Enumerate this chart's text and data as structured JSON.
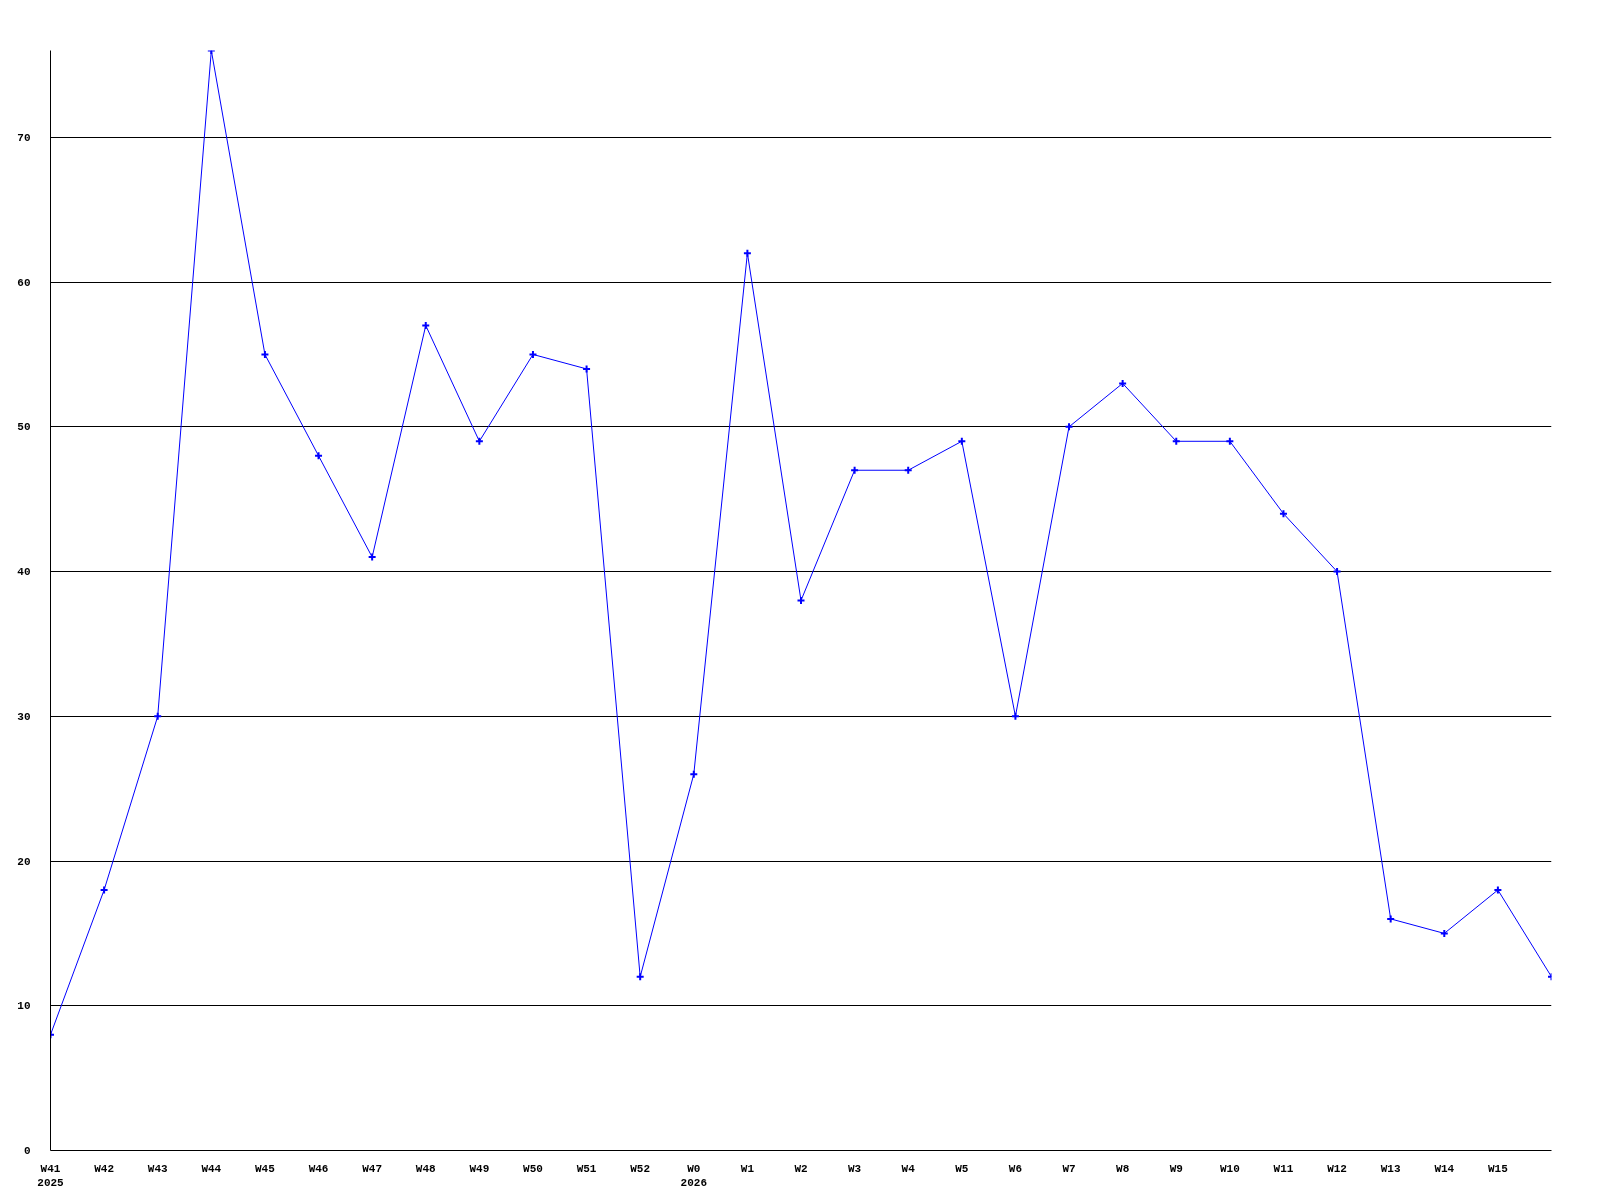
{
  "chart_data": {
    "type": "line",
    "categories": [
      "W41\n2025",
      "W42",
      "W43",
      "W44",
      "W45",
      "W46",
      "W47",
      "W48",
      "W49",
      "W50",
      "W51",
      "W52",
      "W0\n2026",
      "W1",
      "W2",
      "W3",
      "W4",
      "W5",
      "W6",
      "W7",
      "W8",
      "W9",
      "W10",
      "W11",
      "W12",
      "W13",
      "W14",
      "W15",
      null
    ],
    "series": [
      {
        "color": "#0000ff",
        "values": [
          8,
          18,
          30,
          76,
          55,
          48,
          41,
          57,
          49,
          55,
          54,
          12,
          26,
          62,
          38,
          47,
          47,
          49,
          30,
          50,
          53,
          49,
          49,
          44,
          40,
          16,
          15,
          18,
          12
        ]
      }
    ],
    "ylim": [
      0,
      76
    ],
    "yticks": [
      0,
      10,
      20,
      30,
      40,
      50,
      60,
      70
    ],
    "grid": "y",
    "marker": "cross",
    "line_style": "solid"
  }
}
